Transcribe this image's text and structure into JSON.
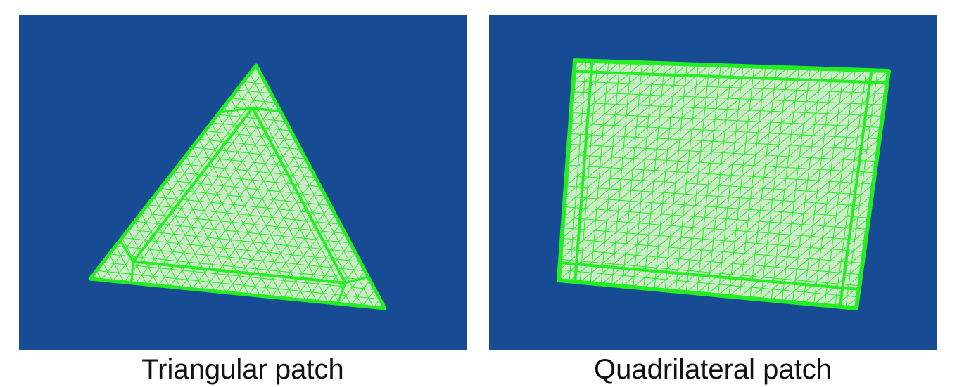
{
  "colors": {
    "background": "#174b94",
    "mesh": "#22ee22",
    "mesh_fill": "#cfeacb"
  },
  "panels": [
    {
      "caption": "Triangular patch"
    },
    {
      "caption": "Quadrilateral patch"
    }
  ]
}
